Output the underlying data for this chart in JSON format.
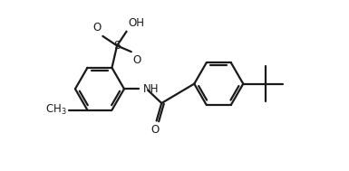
{
  "bg_color": "#ffffff",
  "line_color": "#1a1a1a",
  "line_width": 1.6,
  "font_size": 8.5,
  "figsize": [
    3.85,
    1.89
  ],
  "dpi": 100,
  "xlim": [
    0,
    10
  ],
  "ylim": [
    0,
    5
  ]
}
